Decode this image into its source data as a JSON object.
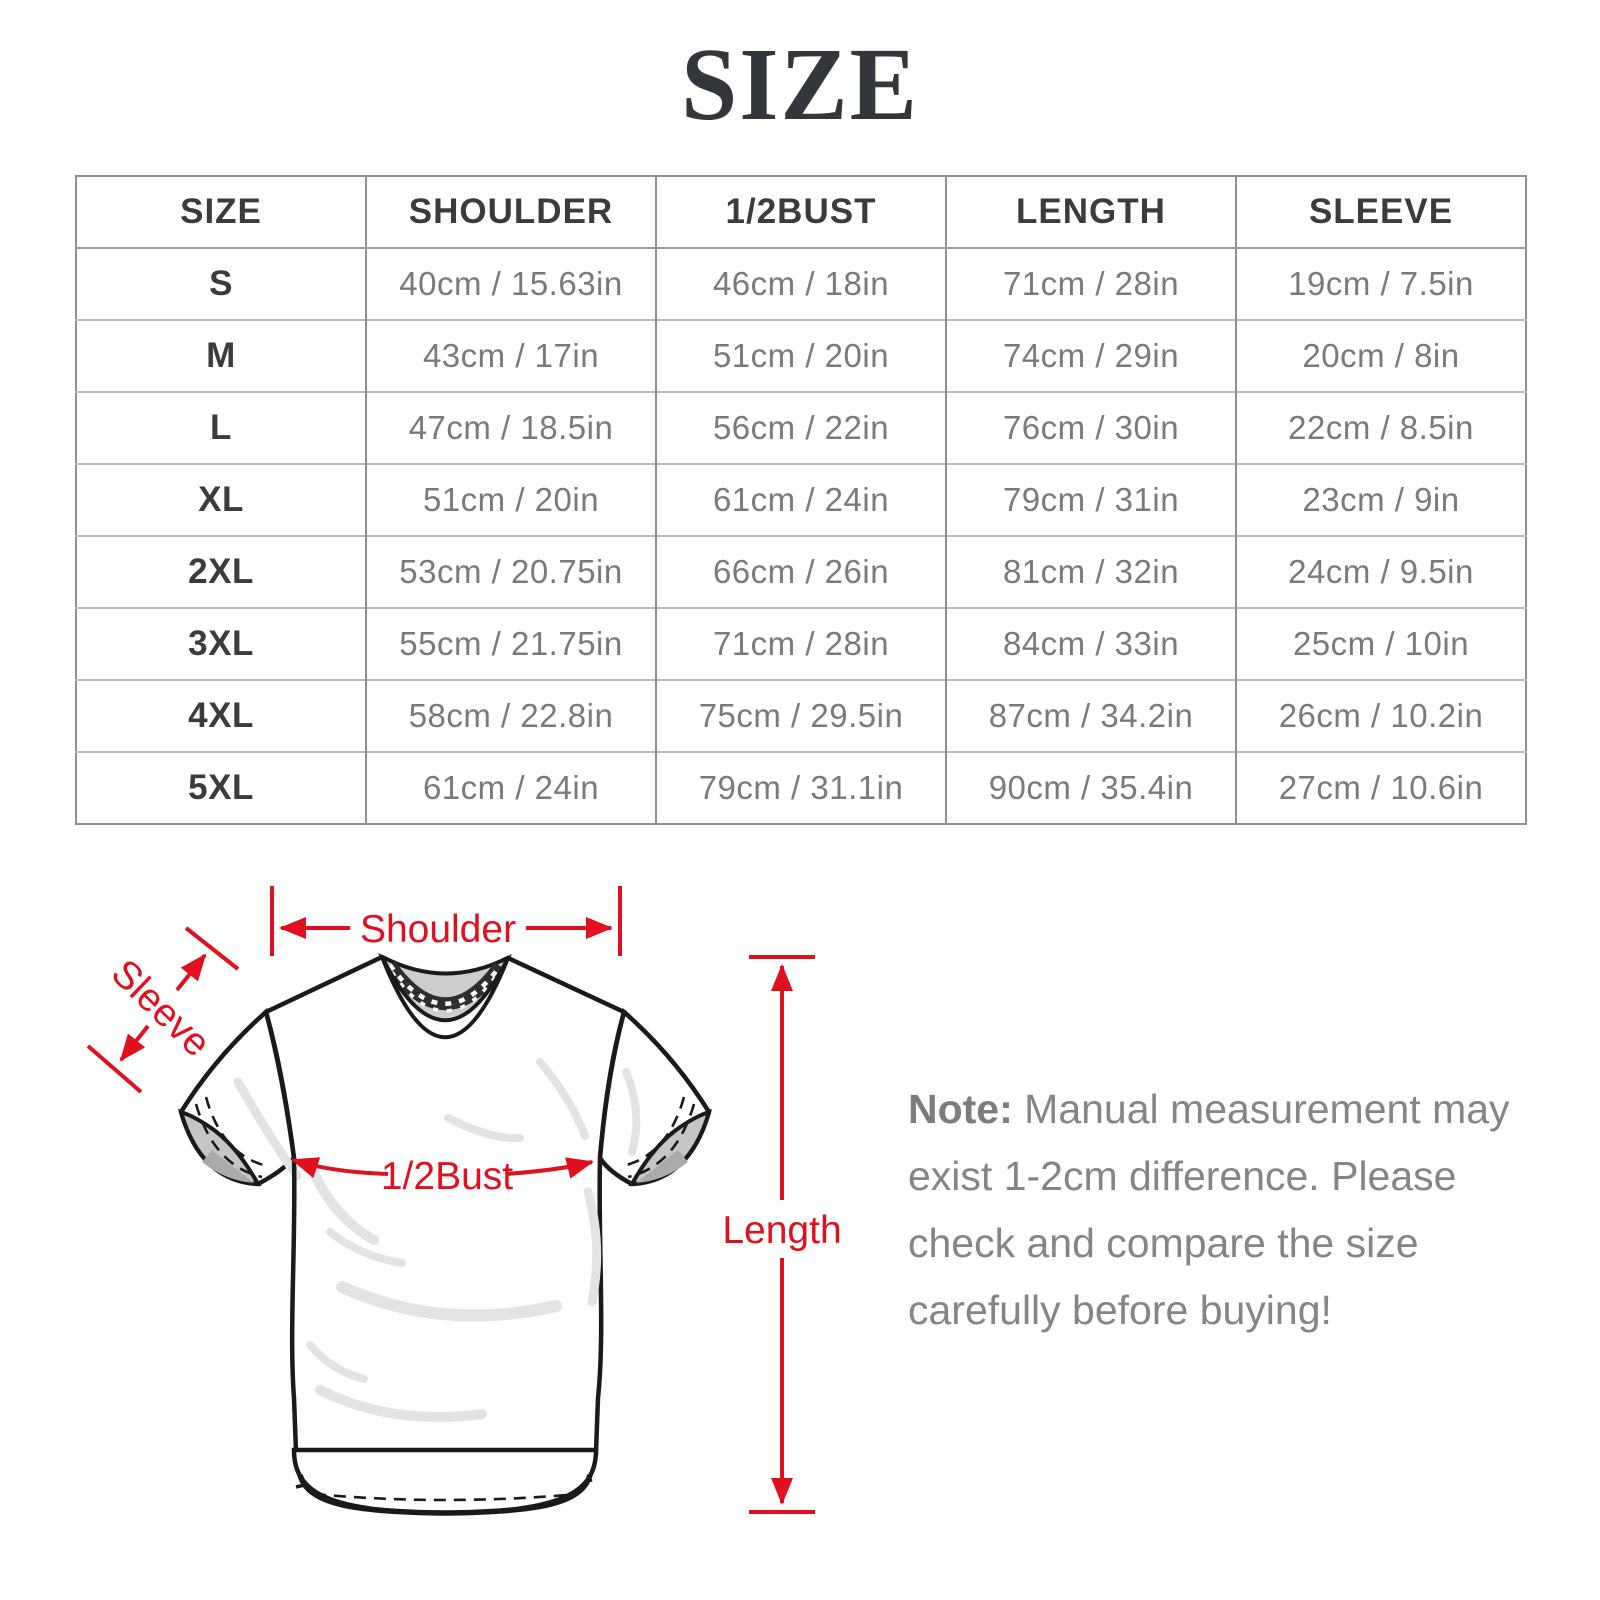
{
  "chart_data": {
    "type": "table",
    "title": "SIZE",
    "columns": [
      "SIZE",
      "SHOULDER",
      "1/2BUST",
      "LENGTH",
      "SLEEVE"
    ],
    "rows": [
      [
        "S",
        "40cm / 15.63in",
        "46cm / 18in",
        "71cm / 28in",
        "19cm / 7.5in"
      ],
      [
        "M",
        "43cm / 17in",
        "51cm / 20in",
        "74cm / 29in",
        "20cm / 8in"
      ],
      [
        "L",
        "47cm / 18.5in",
        "56cm / 22in",
        "76cm / 30in",
        "22cm / 8.5in"
      ],
      [
        "XL",
        "51cm / 20in",
        "61cm / 24in",
        "79cm / 31in",
        "23cm / 9in"
      ],
      [
        "2XL",
        "53cm / 20.75in",
        "66cm / 26in",
        "81cm / 32in",
        "24cm / 9.5in"
      ],
      [
        "3XL",
        "55cm / 21.75in",
        "71cm / 28in",
        "84cm / 33in",
        "25cm / 10in"
      ],
      [
        "4XL",
        "58cm / 22.8in",
        "75cm / 29.5in",
        "87cm / 34.2in",
        "26cm / 10.2in"
      ],
      [
        "5XL",
        "61cm / 24in",
        "79cm / 31.1in",
        "90cm / 35.4in",
        "27cm / 10.6in"
      ]
    ]
  },
  "diagram": {
    "labels": {
      "shoulder": "Shoulder",
      "sleeve": "Sleeve",
      "half_bust": "1/2Bust",
      "length": "Length"
    }
  },
  "note": {
    "label": "Note:",
    "lines": [
      "Manual measurement may",
      "exist 1-2cm difference. Please",
      "check and compare the size",
      "carefully before buying!"
    ]
  },
  "colors": {
    "accent_red": "#e1101e",
    "table_border": "#8f8f8f",
    "row_divider": "#bcbcbc",
    "heading_text": "#3b3b3b",
    "cell_text": "#7a7a7a",
    "note_text": "#858585",
    "title_text": "#33363b",
    "shirt_outline": "#1a1a1a",
    "collar_gray": "#cdcdcd",
    "cuff_gray": "#c6c6c6",
    "wrinkle_gray": "#e3e3e3"
  }
}
